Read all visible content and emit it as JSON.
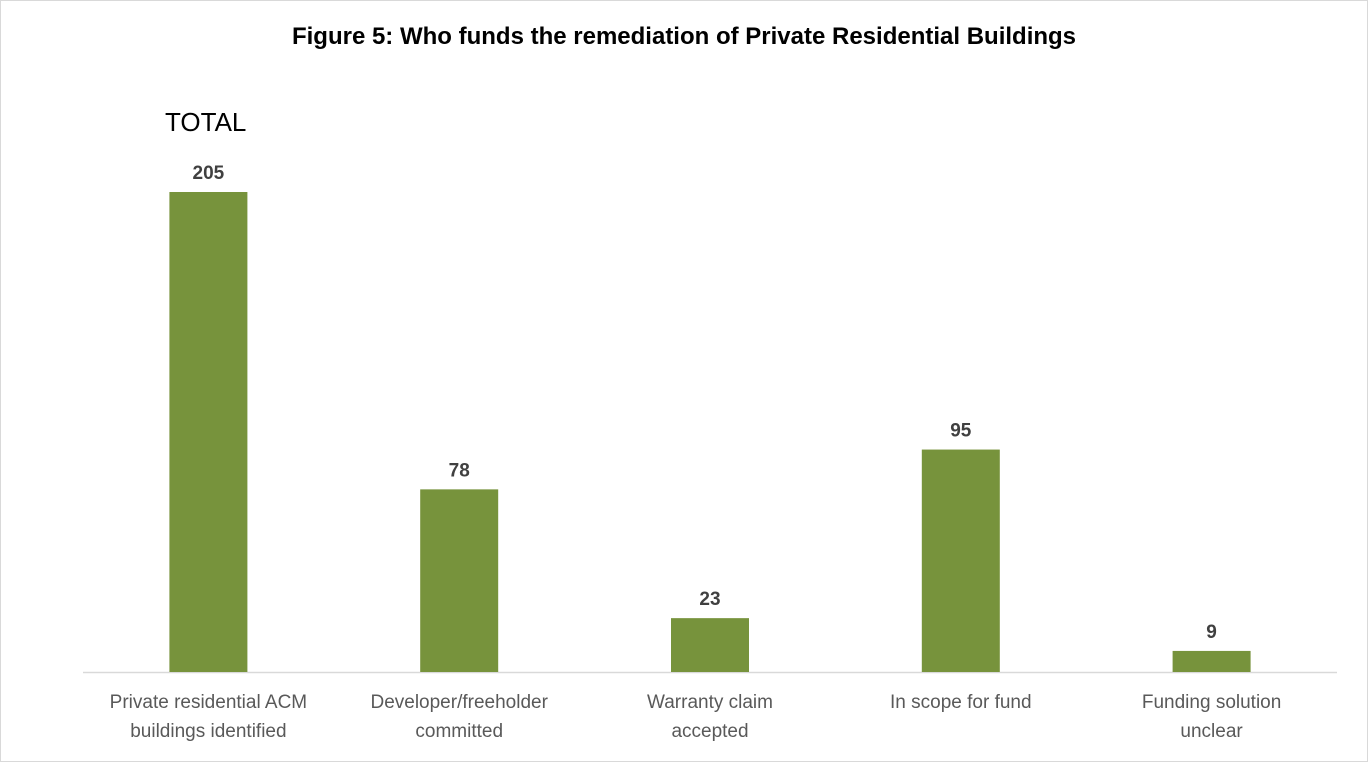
{
  "chart_data": {
    "type": "bar",
    "title": "Figure 5: Who funds the remediation of Private Residential Buildings",
    "annotation": "TOTAL",
    "categories": [
      [
        "Private residential ACM",
        "buildings identified"
      ],
      [
        "Developer/freeholder",
        "committed"
      ],
      [
        "Warranty claim",
        "accepted"
      ],
      [
        "In scope for fund"
      ],
      [
        "Funding solution",
        "unclear"
      ]
    ],
    "values": [
      205,
      78,
      23,
      95,
      9
    ],
    "bar_color": "#77933c",
    "axis_color": "#d9d9d9",
    "ylim": [
      0,
      205
    ],
    "grid": false,
    "legend": "none"
  }
}
